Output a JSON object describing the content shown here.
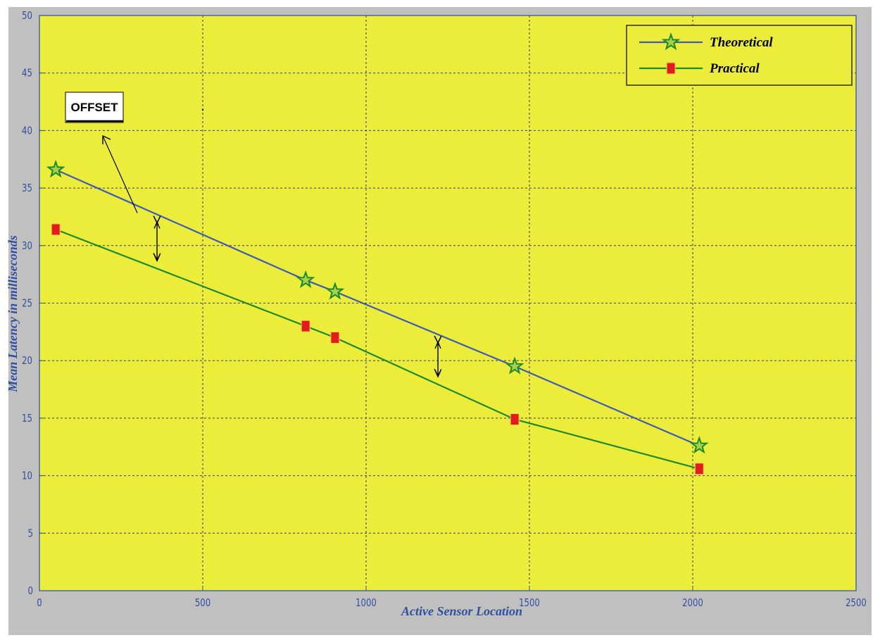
{
  "chart_data": {
    "type": "line",
    "xlabel": "Active Sensor Location",
    "ylabel": "Mean Latency in milliseconds",
    "xlim": [
      0,
      2500
    ],
    "ylim": [
      0,
      50
    ],
    "xticks": [
      0,
      500,
      1000,
      1500,
      2000,
      2500
    ],
    "yticks": [
      0,
      5,
      10,
      15,
      20,
      25,
      30,
      35,
      40,
      45,
      50
    ],
    "grid": true,
    "legend_position": "top-right",
    "background": "#ecec3a",
    "series": [
      {
        "name": "Theoretical",
        "color": "#3e5bb5",
        "marker": "star",
        "marker_color": "#1d8a2a",
        "x": [
          50,
          815,
          905,
          1455,
          2020
        ],
        "y": [
          36.6,
          27.0,
          26.0,
          19.5,
          12.6
        ]
      },
      {
        "name": "Practical",
        "color": "#1d8a2a",
        "marker": "square",
        "marker_color": "#e21c1c",
        "x": [
          50,
          815,
          905,
          1455,
          2020
        ],
        "y": [
          31.4,
          23.0,
          22.0,
          14.9,
          10.6
        ]
      }
    ],
    "annotation": {
      "text": "OFFSET",
      "offset_markers_x": [
        360,
        1220
      ]
    }
  }
}
